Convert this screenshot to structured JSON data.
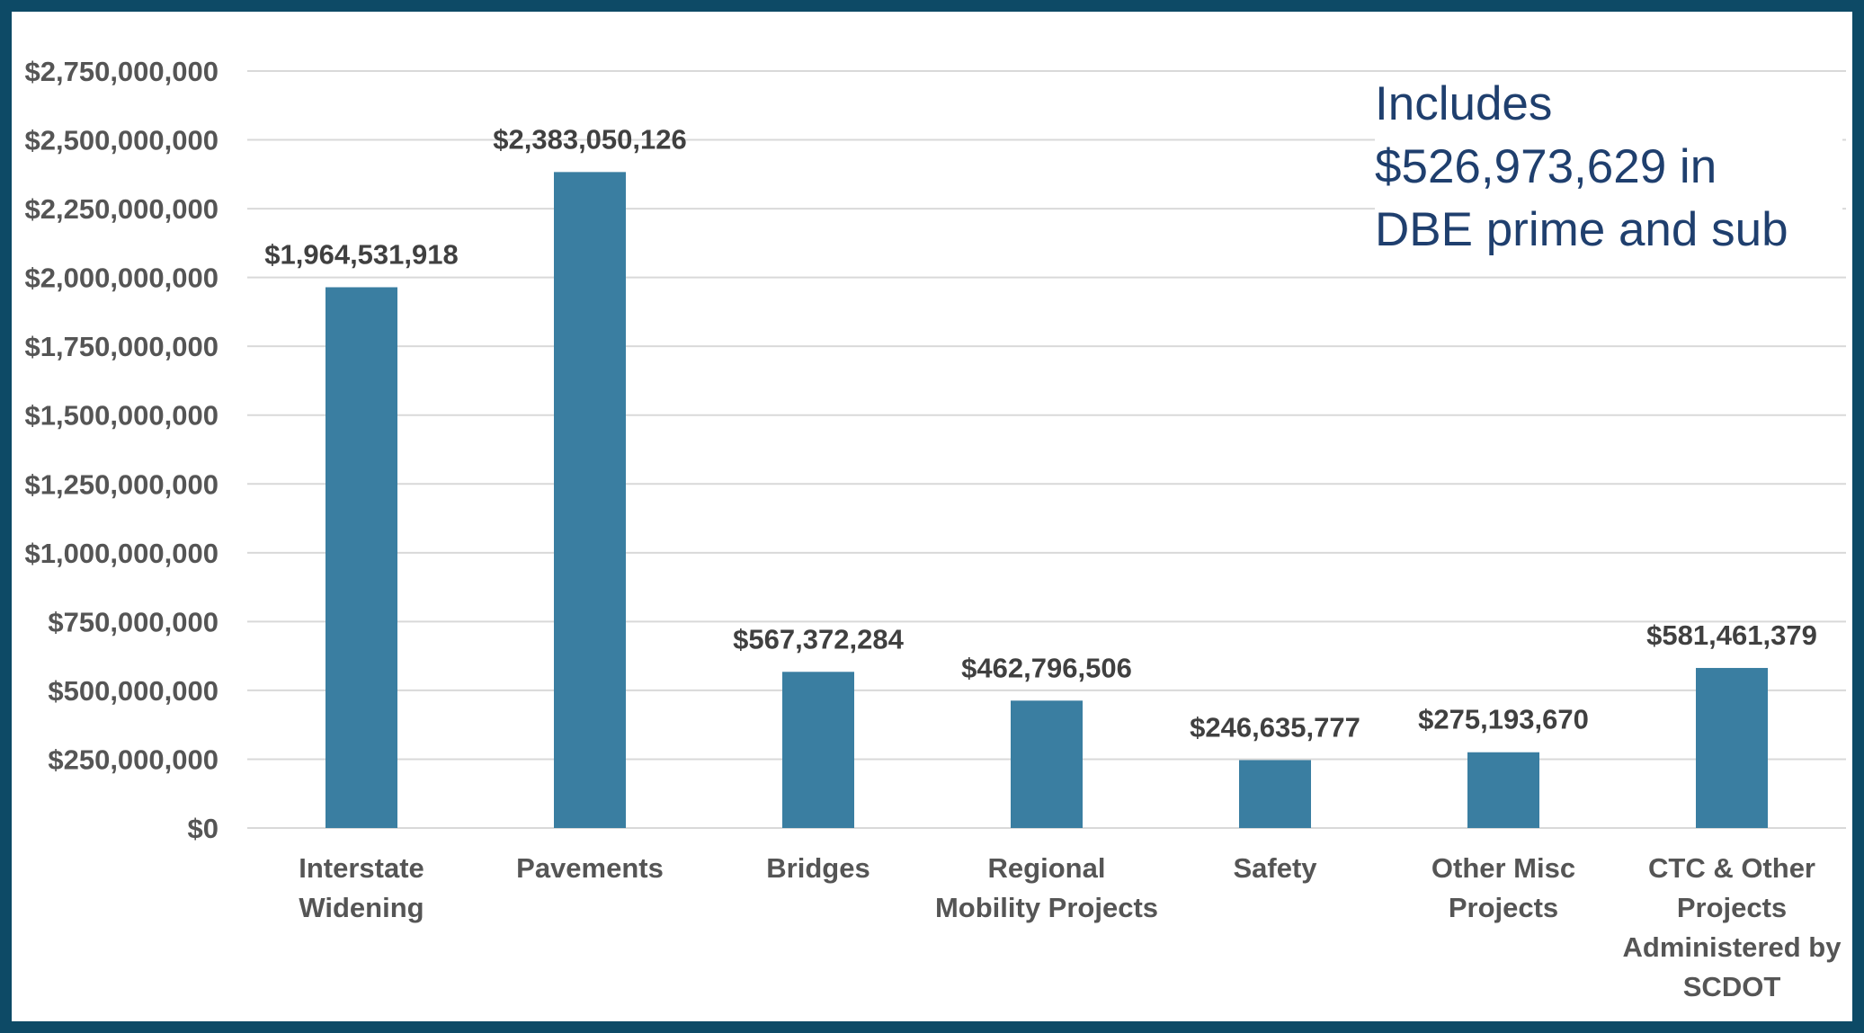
{
  "colors": {
    "bar": "#3a7ea1",
    "frame": "#0d4a66",
    "grid": "#d9d9d9",
    "note_text": "#1f3f6e"
  },
  "annotation": {
    "lines": [
      "Includes",
      "$526,973,629  in",
      "DBE prime and sub"
    ]
  },
  "chart_data": {
    "type": "bar",
    "title": "",
    "xlabel": "",
    "ylabel": "",
    "ylim": [
      0,
      2750000000
    ],
    "grid": true,
    "y_tick_labels": [
      "$0",
      "$250,000,000",
      "$500,000,000",
      "$750,000,000",
      "$1,000,000,000",
      "$1,250,000,000",
      "$1,500,000,000",
      "$1,750,000,000",
      "$2,000,000,000",
      "$2,250,000,000",
      "$2,500,000,000",
      "$2,750,000,000"
    ],
    "y_tick_values": [
      0,
      250000000,
      500000000,
      750000000,
      1000000000,
      1250000000,
      1500000000,
      1750000000,
      2000000000,
      2250000000,
      2500000000,
      2750000000
    ],
    "categories": [
      [
        "Interstate",
        "Widening"
      ],
      [
        "Pavements"
      ],
      [
        "Bridges"
      ],
      [
        "Regional",
        "Mobility Projects"
      ],
      [
        "Safety"
      ],
      [
        "Other Misc",
        "Projects"
      ],
      [
        "CTC & Other",
        "Projects",
        "Administered by",
        "SCDOT"
      ]
    ],
    "values": [
      1964531918,
      2383050126,
      567372284,
      462796506,
      246635777,
      275193670,
      581461379
    ],
    "data_labels": [
      "$1,964,531,918",
      "$2,383,050,126",
      "$567,372,284",
      "$462,796,506",
      "$246,635,777",
      "$275,193,670",
      "$581,461,379"
    ]
  }
}
